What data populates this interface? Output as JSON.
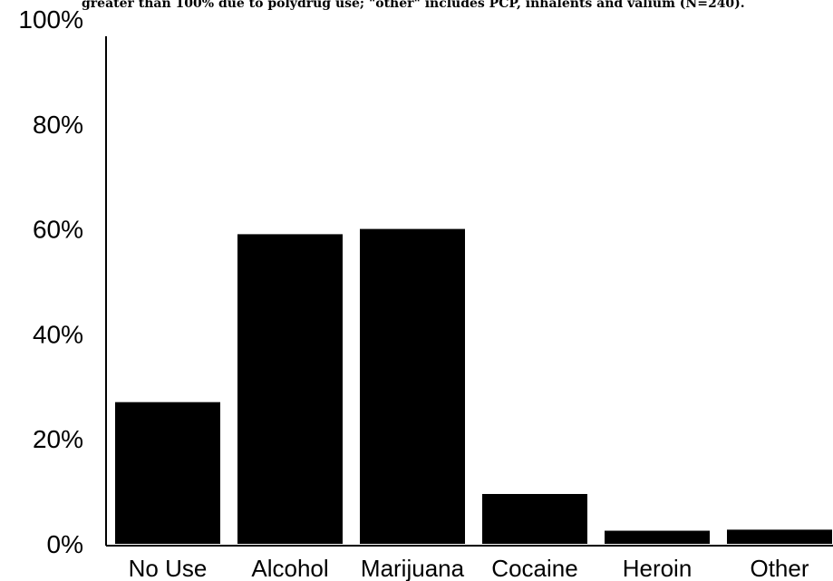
{
  "chart_data": {
    "type": "bar",
    "caption": "greater than 100% due to polydrug use; \"other\" includes PCP, inhalents and valium (N=240).",
    "categories": [
      "No Use",
      "Alcohol",
      "Marijuana",
      "Cocaine",
      "Heroin",
      "Other"
    ],
    "values": [
      27,
      59,
      60,
      9.5,
      2.5,
      2.7
    ],
    "ylim": [
      0,
      100
    ],
    "yticks": [
      0,
      20,
      40,
      60,
      80,
      100
    ],
    "ytick_labels": [
      "0%",
      "20%",
      "40%",
      "60%",
      "80%",
      "100%"
    ],
    "grid": false,
    "legend": "none",
    "bar_color": "#000000",
    "axis_color": "#000000"
  }
}
